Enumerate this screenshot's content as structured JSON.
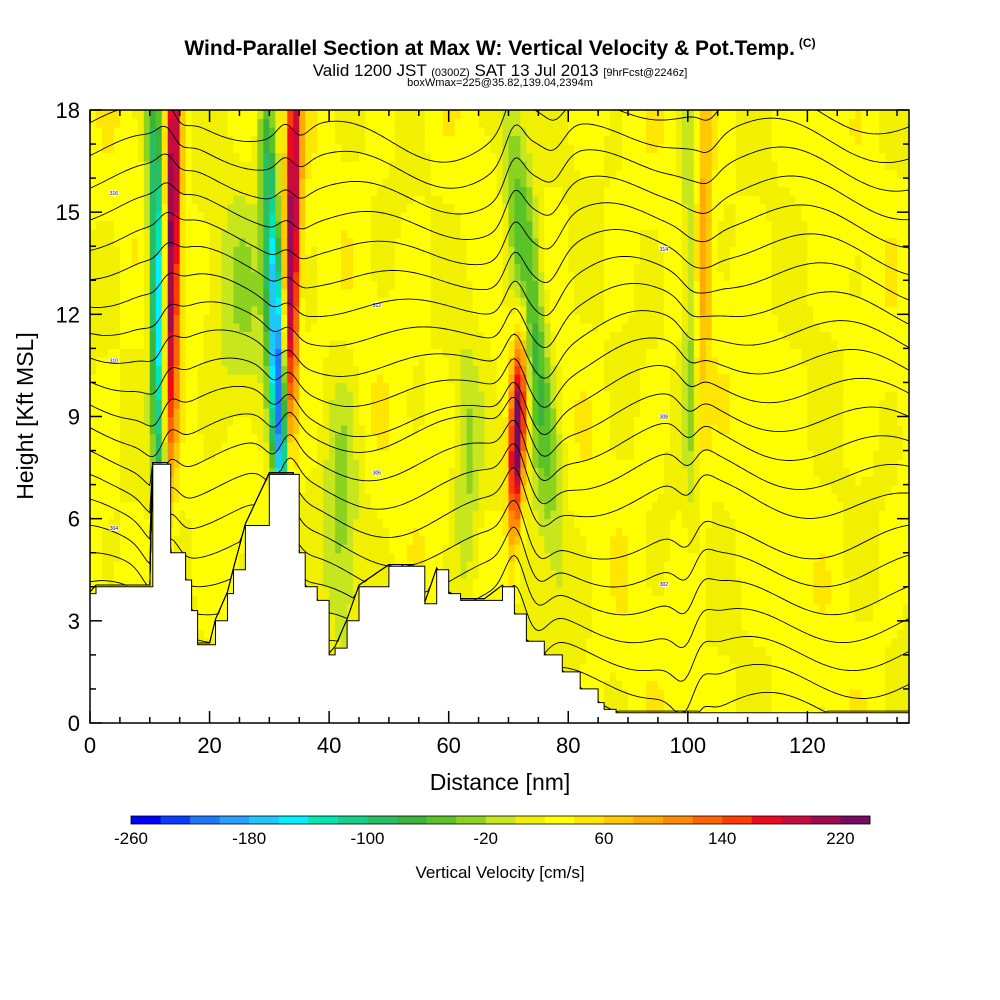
{
  "title": "Wind-Parallel Section at Max W: Vertical Velocity & Pot.Temp.",
  "copyright": "(C)",
  "subtitle": {
    "part1": "Valid 1200 JST",
    "part2": "(0300Z)",
    "part3": "SAT 13 Jul 2013",
    "part4": "[9hrFcst@2246z]"
  },
  "subtitle2": "boxWmax=225@35.82,139.04,2394m",
  "chart_data": {
    "type": "heatmap",
    "xlabel": "Distance [nm]",
    "ylabel": "Height [Kft MSL]",
    "xlim": [
      0,
      137
    ],
    "ylim": [
      0,
      18
    ],
    "xticks": [
      0,
      20,
      40,
      60,
      80,
      100,
      120
    ],
    "yticks": [
      0,
      3,
      6,
      9,
      12,
      15,
      18
    ],
    "colorbar": {
      "label": "Vertical Velocity [cm/s]",
      "tick_labels": [
        -260,
        -180,
        -100,
        -20,
        60,
        140,
        220
      ],
      "min": -260,
      "max": 240,
      "step": 20,
      "colors": [
        "#0000ff",
        "#0a3cff",
        "#1e78ff",
        "#28a0ff",
        "#1ec8ff",
        "#00f0ff",
        "#00e6b4",
        "#14d28c",
        "#28be64",
        "#3cb43c",
        "#5ac328",
        "#8cd21e",
        "#c8e61e",
        "#f0f000",
        "#ffff00",
        "#ffe600",
        "#ffc800",
        "#ffaa00",
        "#ff8c00",
        "#ff6400",
        "#ff3c00",
        "#ee0a1e",
        "#c80a3c",
        "#a00a50",
        "#780a64"
      ]
    },
    "updraft_bands": [
      {
        "x": 13,
        "peak": 220
      },
      {
        "x": 33,
        "peak": 200
      },
      {
        "x": 71,
        "peak": 225
      },
      {
        "x": 102,
        "peak": 60
      }
    ],
    "downdraft_bands": [
      {
        "x": 12,
        "peak": -200
      },
      {
        "x": 32,
        "peak": -240
      },
      {
        "x": 76,
        "peak": -100
      },
      {
        "x": 101,
        "peak": -60
      }
    ],
    "terrain": {
      "x": [
        0,
        1,
        10,
        10.5,
        13,
        13.5,
        16,
        17,
        18,
        20,
        21,
        23,
        24,
        26,
        30,
        34,
        35,
        36,
        38,
        40,
        41,
        43,
        45,
        50,
        54,
        56,
        58,
        60,
        62,
        64,
        66,
        69,
        71,
        73,
        76,
        79,
        82,
        85,
        86,
        88,
        137
      ],
      "height": [
        3.8,
        4.0,
        4.0,
        7.6,
        7.6,
        5.0,
        4.2,
        3.3,
        2.3,
        2.3,
        3.0,
        3.8,
        4.5,
        5.8,
        7.3,
        7.3,
        5.0,
        4.0,
        3.6,
        2.0,
        2.2,
        3.0,
        4.0,
        4.6,
        4.6,
        3.5,
        4.5,
        3.8,
        3.6,
        3.6,
        3.6,
        4.0,
        3.2,
        2.4,
        2.0,
        1.5,
        1.0,
        0.6,
        0.4,
        0.3,
        0.3
      ]
    },
    "contour_labels": [
      "298",
      "300",
      "302",
      "304",
      "306",
      "308",
      "310",
      "312",
      "314",
      "316",
      "318",
      "320",
      "322"
    ]
  }
}
